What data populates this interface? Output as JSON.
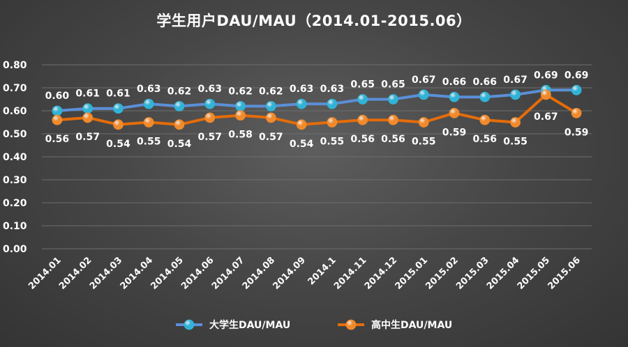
{
  "chart_data": {
    "type": "line",
    "title": "学生用户DAU/MAU（2014.01-2015.06）",
    "categories": [
      "2014.01",
      "2014.02",
      "2014.03",
      "2014.04",
      "2014.05",
      "2014.06",
      "2014.07",
      "2014.08",
      "2014.09",
      "2014.1",
      "2014.11",
      "2014.12",
      "2015.01",
      "2015.02",
      "2015.03",
      "2015.04",
      "2015.05",
      "2015.06"
    ],
    "series": [
      {
        "name": "大学生DAU/MAU",
        "color": "#5b8fd8",
        "marker_color": "#31b3d6",
        "values": [
          0.6,
          0.61,
          0.61,
          0.63,
          0.62,
          0.63,
          0.62,
          0.62,
          0.63,
          0.63,
          0.65,
          0.65,
          0.67,
          0.66,
          0.66,
          0.67,
          0.69,
          0.69
        ],
        "labels": [
          "0.60",
          "0.61",
          "0.61",
          "0.63",
          "0.62",
          "0.63",
          "0.62",
          "0.62",
          "0.63",
          "0.63",
          "0.65",
          "0.65",
          "0.67",
          "0.66",
          "0.66",
          "0.67",
          "0.69",
          "0.69"
        ]
      },
      {
        "name": "高中生DAU/MAU",
        "color": "#e46c0a",
        "marker_color": "#f08a2c",
        "values": [
          0.56,
          0.57,
          0.54,
          0.55,
          0.54,
          0.57,
          0.58,
          0.57,
          0.54,
          0.55,
          0.56,
          0.56,
          0.55,
          0.59,
          0.56,
          0.55,
          0.67,
          0.59
        ],
        "labels": [
          "0.56",
          "0.57",
          "0.54",
          "0.55",
          "0.54",
          "0.57",
          "0.58",
          "0.57",
          "0.54",
          "0.55",
          "0.56",
          "0.56",
          "0.55",
          "0.59",
          "0.56",
          "0.55",
          "0.67",
          "0.59"
        ]
      }
    ],
    "ylim": [
      0,
      0.8
    ],
    "yticks": [
      "0.00",
      "0.10",
      "0.20",
      "0.30",
      "0.40",
      "0.50",
      "0.60",
      "0.70",
      "0.80"
    ],
    "xlabel": "",
    "ylabel": "",
    "grid": true,
    "legend_position": "bottom"
  }
}
